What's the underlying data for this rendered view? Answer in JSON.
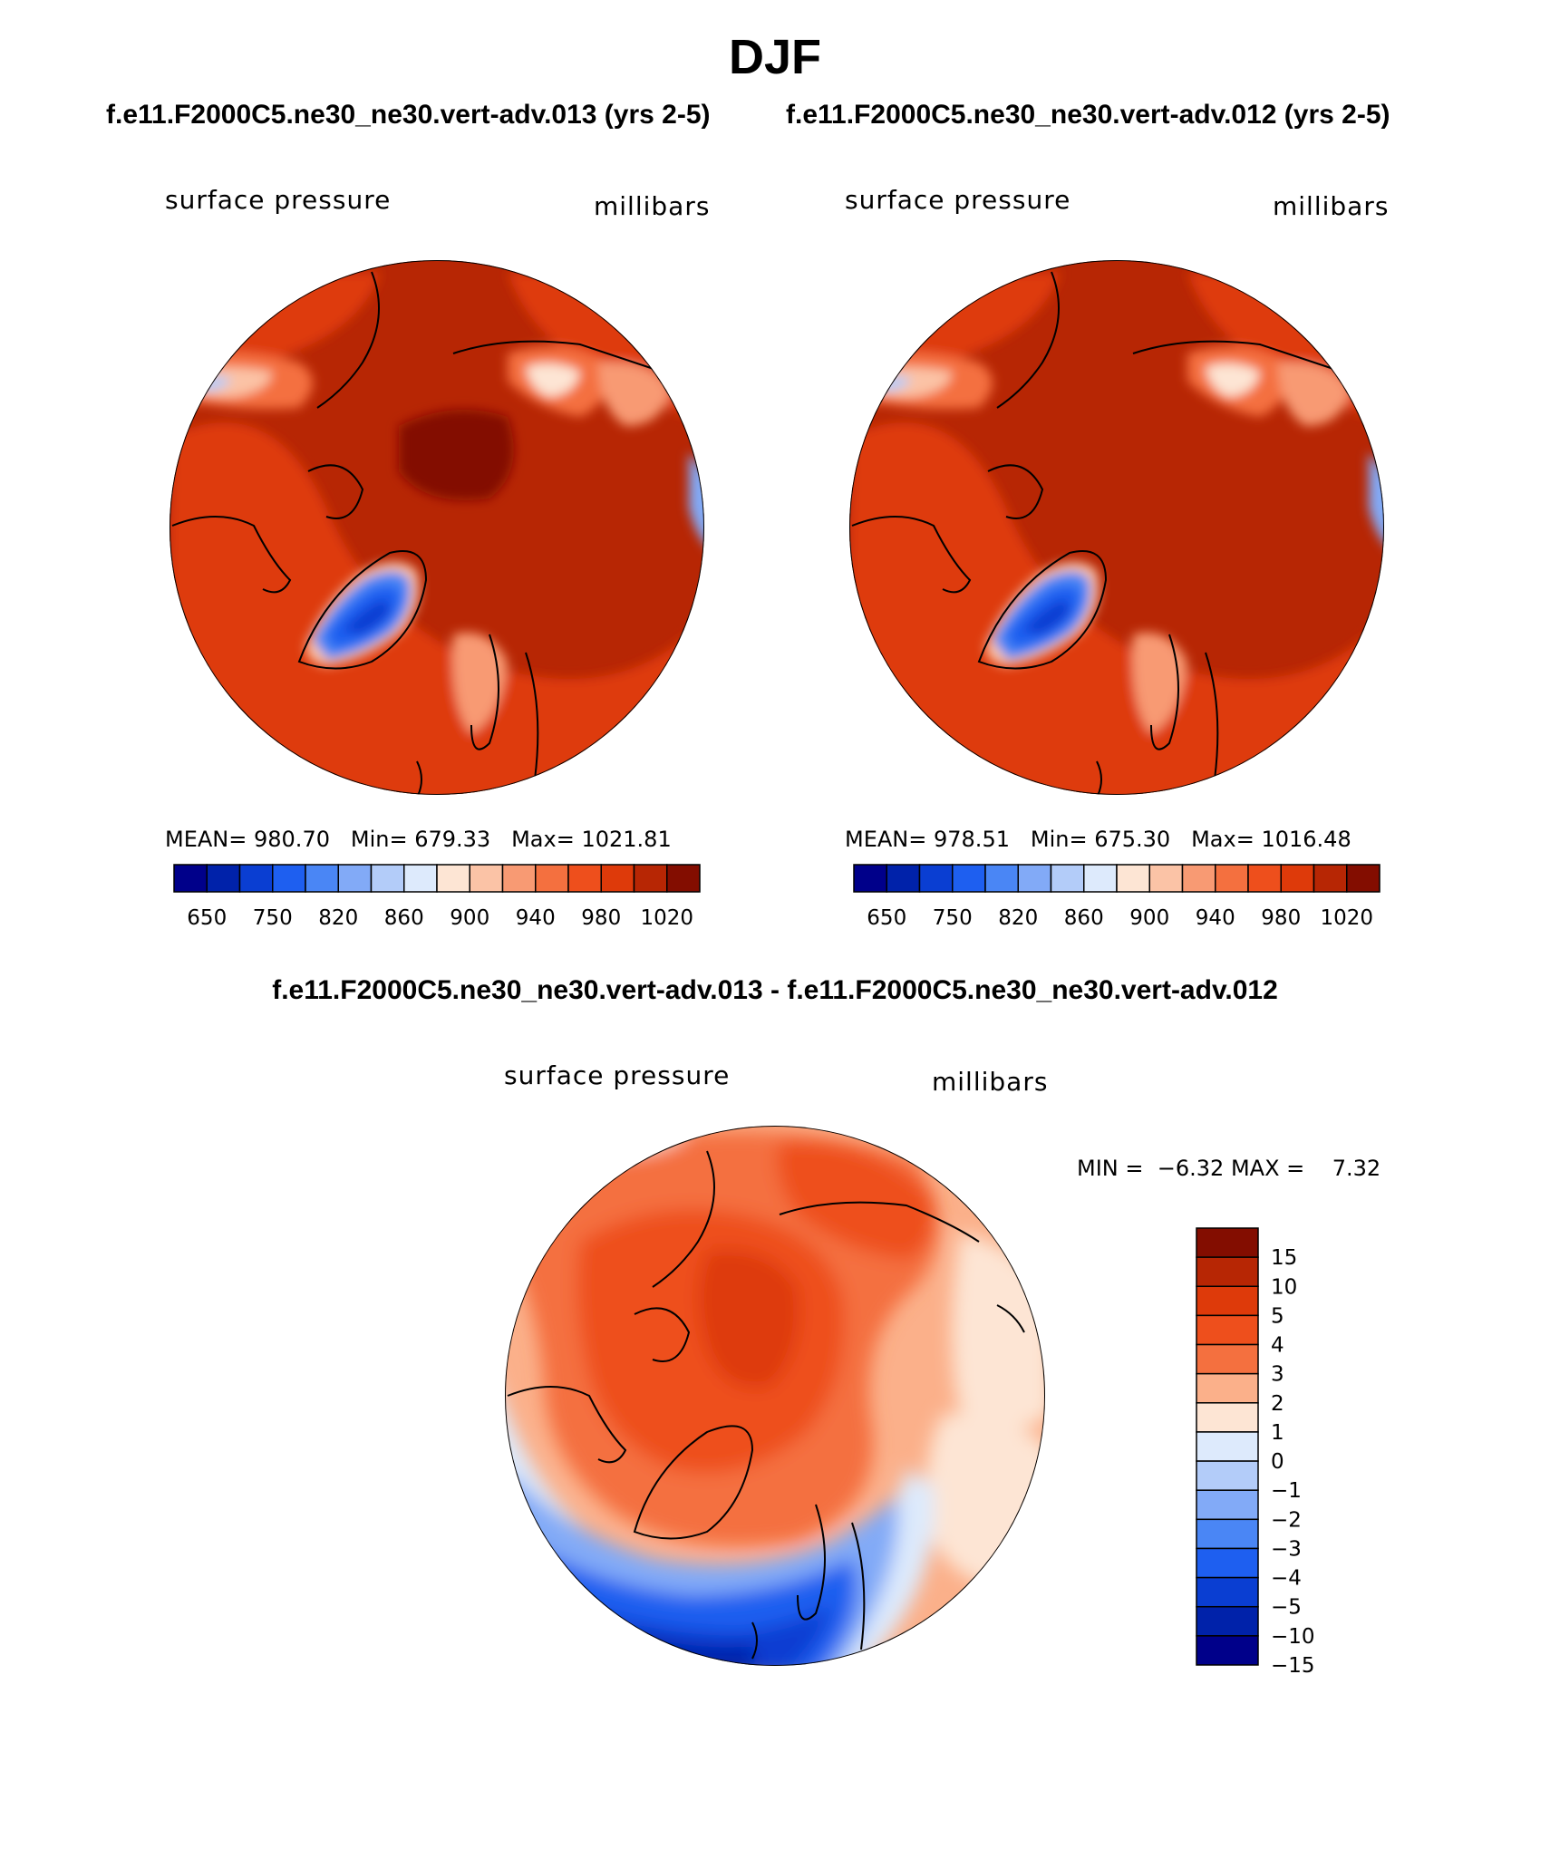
{
  "header": {
    "title": "DJF",
    "case_a": "f.e11.F2000C5.ne30_ne30.vert-adv.013 (yrs 2-5)",
    "case_b": "f.e11.F2000C5.ne30_ne30.vert-adv.012 (yrs 2-5)",
    "difference": "f.e11.F2000C5.ne30_ne30.vert-adv.013 - f.e11.F2000C5.ne30_ne30.vert-adv.012"
  },
  "chart_data": [
    {
      "type": "heatmap",
      "projection": "north polar stereographic",
      "title": "f.e11.F2000C5.ne30_ne30.vert-adv.013 (yrs 2-5)",
      "variable": "surface pressure",
      "units": "millibars",
      "stats": {
        "mean_label": "MEAN=",
        "mean": "980.70",
        "min_label": "Min=",
        "min": "679.33",
        "max_label": "Max=",
        "max": "1021.81"
      },
      "contour_levels": [
        650,
        700,
        750,
        800,
        820,
        840,
        860,
        880,
        900,
        920,
        940,
        960,
        980,
        1000,
        1020
      ],
      "colorbar_tick_labels": [
        "650",
        "750",
        "820",
        "860",
        "900",
        "940",
        "980",
        "1020"
      ],
      "colors": [
        "#00008a",
        "#0022aa",
        "#0a3ed2",
        "#1e5ff0",
        "#4a86f5",
        "#82aaf7",
        "#b3ccf9",
        "#ddeafc",
        "#fde5d4",
        "#fbc3a6",
        "#f89a73",
        "#f4703f",
        "#ee4f1c",
        "#de3a0a",
        "#b72604",
        "#830d00"
      ]
    },
    {
      "type": "heatmap",
      "projection": "north polar stereographic",
      "title": "f.e11.F2000C5.ne30_ne30.vert-adv.012 (yrs 2-5)",
      "variable": "surface pressure",
      "units": "millibars",
      "stats": {
        "mean_label": "MEAN=",
        "mean": "978.51",
        "min_label": "Min=",
        "min": "675.30",
        "max_label": "Max=",
        "max": "1016.48"
      },
      "contour_levels": [
        650,
        700,
        750,
        800,
        820,
        840,
        860,
        880,
        900,
        920,
        940,
        960,
        980,
        1000,
        1020
      ],
      "colorbar_tick_labels": [
        "650",
        "750",
        "820",
        "860",
        "900",
        "940",
        "980",
        "1020"
      ],
      "colors": [
        "#00008a",
        "#0022aa",
        "#0a3ed2",
        "#1e5ff0",
        "#4a86f5",
        "#82aaf7",
        "#b3ccf9",
        "#ddeafc",
        "#fde5d4",
        "#fbc3a6",
        "#f89a73",
        "#f4703f",
        "#ee4f1c",
        "#de3a0a",
        "#b72604",
        "#830d00"
      ]
    },
    {
      "type": "heatmap",
      "projection": "north polar stereographic",
      "title": "f.e11.F2000C5.ne30_ne30.vert-adv.013 - f.e11.F2000C5.ne30_ne30.vert-adv.012",
      "variable": "surface pressure",
      "units": "millibars",
      "stats": {
        "min_label": "MIN =",
        "min": "−6.32",
        "max_label": "MAX =",
        "max": "7.32"
      },
      "contour_levels": [
        -15,
        -10,
        -5,
        -4,
        -3,
        -2,
        -1,
        0,
        1,
        2,
        3,
        4,
        5,
        10,
        15
      ],
      "colorbar_tick_labels": [
        "15",
        "10",
        "5",
        "4",
        "3",
        "2",
        "1",
        "0",
        "−1",
        "−2",
        "−3",
        "−4",
        "−5",
        "−10",
        "−15"
      ],
      "colors": [
        "#830d00",
        "#b72604",
        "#de3a0a",
        "#ee4f1c",
        "#f4703f",
        "#fbb08a",
        "#fde5d4",
        "#ddeafc",
        "#b3ccf9",
        "#82aaf7",
        "#4a86f5",
        "#1e5ff0",
        "#0a3ed2",
        "#0022aa",
        "#00008a"
      ]
    }
  ]
}
